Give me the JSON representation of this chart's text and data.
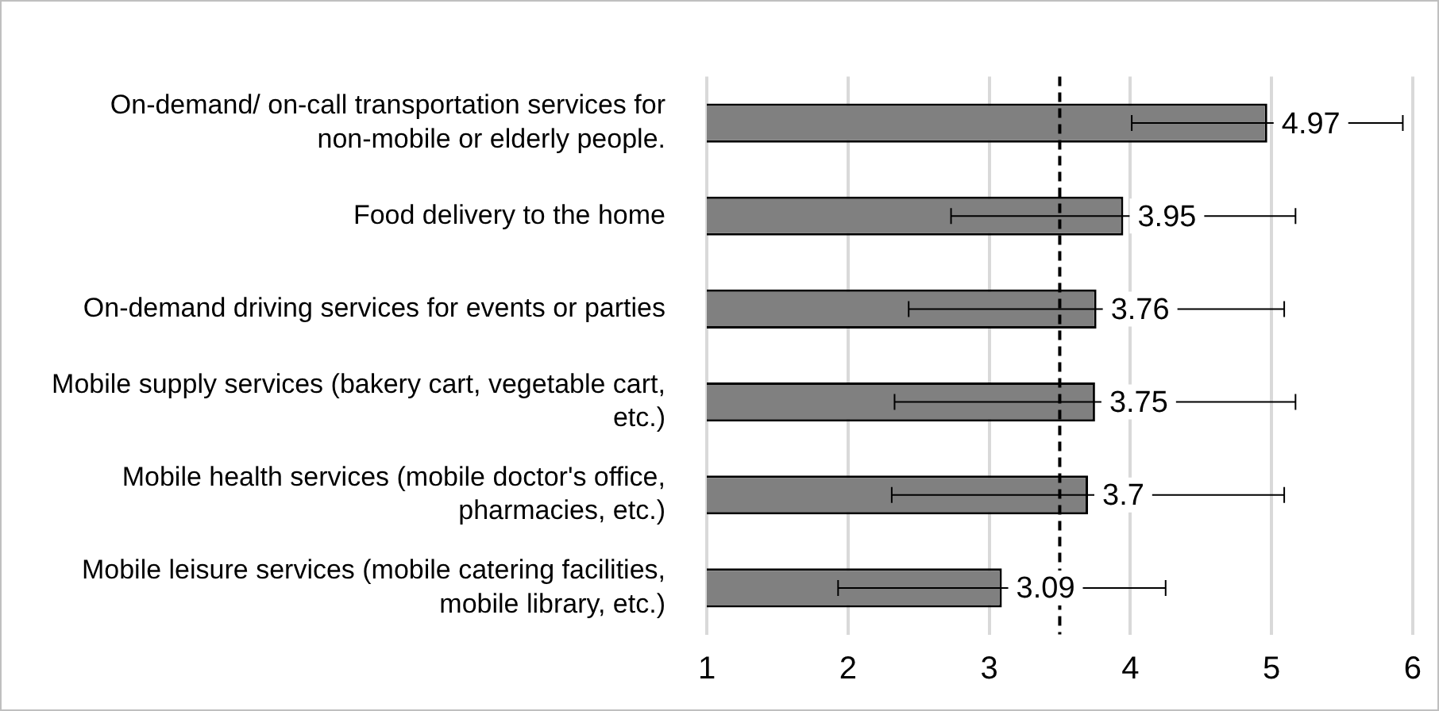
{
  "chart_data": {
    "type": "bar",
    "orientation": "horizontal",
    "categories": [
      "On-demand/ on-call transportation services for non-mobile or elderly people.",
      "Food delivery to the home",
      "On-demand driving services for events or parties",
      "Mobile supply services (bakery cart, vegetable cart, etc.)",
      "Mobile health services (mobile doctor's office, pharmacies, etc.)",
      "Mobile leisure services (mobile catering facilities, mobile library, etc.)"
    ],
    "values": [
      4.97,
      3.95,
      3.76,
      3.75,
      3.7,
      3.09
    ],
    "errors": [
      0.96,
      1.22,
      1.33,
      1.42,
      1.39,
      1.16
    ],
    "color": "#808080",
    "xlim": [
      1,
      6
    ],
    "xticks": [
      1,
      2,
      3,
      4,
      5,
      6
    ],
    "grid": "x",
    "legend": false,
    "data_labels": true,
    "ref_lines": [
      {
        "axis": "x",
        "value": 3.5,
        "color": "#000000",
        "line_style": "dashed"
      }
    ]
  }
}
